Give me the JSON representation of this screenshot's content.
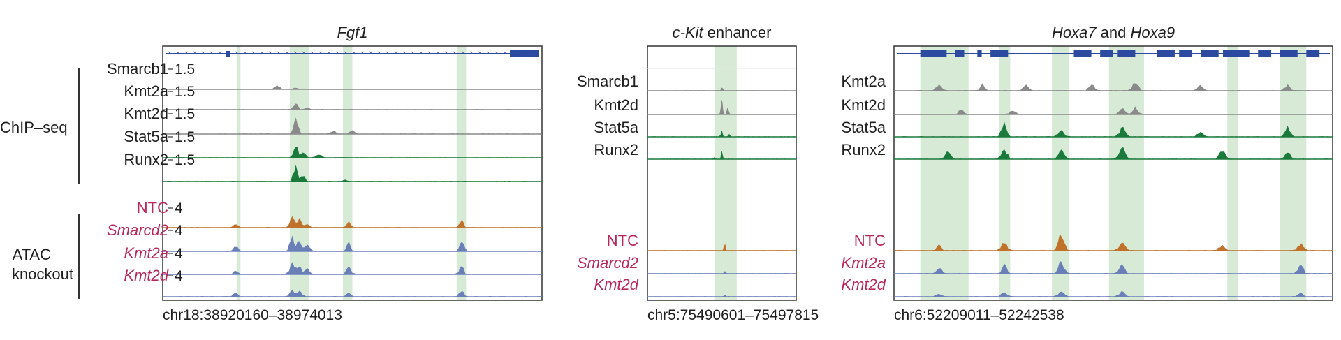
{
  "colors": {
    "gray": "#8a8a8a",
    "green": "#1a7a3c",
    "orange": "#c0712a",
    "blue": "#6a7fb8",
    "highlight": "#cfe6cf",
    "gene": "#2b4aa0",
    "label_red": "#b8275a",
    "frame": "#333333"
  },
  "groups": {
    "chipseq": "ChIP–seq",
    "atac_line1": "ATAC",
    "atac_line2": "knockout"
  },
  "panels": [
    {
      "id": "fgf1",
      "title_parts": [
        {
          "text": "Fgf1",
          "italic": true
        }
      ],
      "coord": "chr18:38920160–38974013",
      "chip_tracks": [
        {
          "label": "Smarcb1",
          "scale": "1.5",
          "color": "gray",
          "peaks": [
            [
              0.3,
              0.25
            ],
            [
              0.35,
              0.08
            ]
          ]
        },
        {
          "label": "Kmt2a",
          "scale": "1.5",
          "color": "gray",
          "peaks": [
            [
              0.35,
              0.35
            ],
            [
              0.38,
              0.1
            ]
          ]
        },
        {
          "label": "Kmt2d",
          "scale": "1.5",
          "color": "gray",
          "peaks": [
            [
              0.35,
              0.8
            ],
            [
              0.45,
              0.15
            ],
            [
              0.5,
              0.2
            ]
          ]
        },
        {
          "label": "Stat5a",
          "scale": "1.5",
          "color": "green",
          "peaks": [
            [
              0.35,
              0.7
            ],
            [
              0.37,
              0.3
            ],
            [
              0.41,
              0.2
            ]
          ]
        },
        {
          "label": "Runx2",
          "scale": "1.5",
          "color": "green",
          "peaks": [
            [
              0.35,
              0.9
            ],
            [
              0.37,
              0.3
            ],
            [
              0.48,
              0.1
            ]
          ]
        }
      ],
      "atac_tracks": [
        {
          "label": "NTC",
          "italic": false,
          "scale": "4",
          "color": "orange",
          "peaks": [
            [
              0.19,
              0.2
            ],
            [
              0.34,
              0.6
            ],
            [
              0.36,
              0.5
            ],
            [
              0.38,
              0.2
            ],
            [
              0.49,
              0.3
            ],
            [
              0.79,
              0.4
            ]
          ]
        },
        {
          "label": "Smarcd2",
          "italic": true,
          "scale": "4",
          "color": "blue",
          "peaks": [
            [
              0.19,
              0.3
            ],
            [
              0.34,
              0.8
            ],
            [
              0.36,
              0.6
            ],
            [
              0.38,
              0.4
            ],
            [
              0.49,
              0.5
            ],
            [
              0.79,
              0.6
            ]
          ]
        },
        {
          "label": "Kmt2a",
          "italic": true,
          "scale": "4",
          "color": "blue",
          "peaks": [
            [
              0.19,
              0.2
            ],
            [
              0.34,
              0.7
            ],
            [
              0.36,
              0.5
            ],
            [
              0.38,
              0.3
            ],
            [
              0.49,
              0.4
            ],
            [
              0.79,
              0.5
            ]
          ]
        },
        {
          "label": "Kmt2d",
          "italic": true,
          "scale": "4",
          "color": "blue",
          "peaks": [
            [
              0.19,
              0.2
            ],
            [
              0.34,
              0.4
            ],
            [
              0.36,
              0.3
            ],
            [
              0.49,
              0.2
            ],
            [
              0.79,
              0.3
            ]
          ]
        }
      ],
      "highlights": [
        [
          0.195,
          0.205
        ],
        [
          0.335,
          0.385
        ],
        [
          0.475,
          0.5
        ],
        [
          0.775,
          0.8
        ]
      ]
    },
    {
      "id": "ckit",
      "title_parts": [
        {
          "text": "c-Kit",
          "italic": true
        },
        {
          "text": " enhancer",
          "italic": false
        }
      ],
      "coord": "chr5:75490601–75497815",
      "chip_tracks": [
        {
          "label": "Smarcb1",
          "scale": "",
          "color": "gray",
          "peaks": [
            [
              0.5,
              0.2
            ]
          ]
        },
        {
          "label": "Kmt2d",
          "scale": "",
          "color": "gray",
          "peaks": [
            [
              0.5,
              0.85
            ],
            [
              0.54,
              0.4
            ]
          ]
        },
        {
          "label": "Stat5a",
          "scale": "",
          "color": "green",
          "peaks": [
            [
              0.5,
              0.35
            ],
            [
              0.55,
              0.15
            ]
          ]
        },
        {
          "label": "Runx2",
          "scale": "",
          "color": "green",
          "peaks": [
            [
              0.5,
              0.45
            ],
            [
              0.45,
              0.1
            ]
          ]
        }
      ],
      "atac_tracks": [
        {
          "label": "NTC",
          "italic": false,
          "scale": "",
          "color": "orange",
          "peaks": [
            [
              0.52,
              0.4
            ]
          ]
        },
        {
          "label": "Smarcd2",
          "italic": true,
          "scale": "",
          "color": "blue",
          "peaks": [
            [
              0.52,
              0.15
            ]
          ]
        },
        {
          "label": "Kmt2d",
          "italic": true,
          "scale": "",
          "color": "blue",
          "peaks": [
            [
              0.52,
              0.1
            ]
          ]
        }
      ],
      "highlights": [
        [
          0.45,
          0.6
        ]
      ]
    },
    {
      "id": "hoxa",
      "title_parts": [
        {
          "text": "Hoxa7",
          "italic": true
        },
        {
          "text": " and ",
          "italic": false
        },
        {
          "text": "Hoxa9",
          "italic": true
        }
      ],
      "coord": "chr6:52209011–52242538",
      "chip_tracks": [
        {
          "label": "Kmt2a",
          "scale": "",
          "color": "gray",
          "peaks": [
            [
              0.1,
              0.3
            ],
            [
              0.2,
              0.4
            ],
            [
              0.3,
              0.3
            ],
            [
              0.45,
              0.4
            ],
            [
              0.55,
              0.5
            ],
            [
              0.7,
              0.3
            ],
            [
              0.9,
              0.3
            ]
          ]
        },
        {
          "label": "Kmt2d",
          "scale": "",
          "color": "gray",
          "peaks": [
            [
              0.15,
              0.3
            ],
            [
              0.27,
              0.25
            ],
            [
              0.52,
              0.35
            ],
            [
              0.55,
              0.4
            ]
          ]
        },
        {
          "label": "Stat5a",
          "scale": "",
          "color": "green",
          "peaks": [
            [
              0.25,
              0.8
            ],
            [
              0.38,
              0.4
            ],
            [
              0.52,
              0.6
            ],
            [
              0.7,
              0.3
            ],
            [
              0.9,
              0.6
            ]
          ]
        },
        {
          "label": "Runx2",
          "scale": "",
          "color": "green",
          "peaks": [
            [
              0.12,
              0.4
            ],
            [
              0.25,
              0.6
            ],
            [
              0.38,
              0.5
            ],
            [
              0.52,
              0.7
            ],
            [
              0.75,
              0.5
            ],
            [
              0.9,
              0.4
            ]
          ]
        }
      ],
      "atac_tracks": [
        {
          "label": "NTC",
          "italic": false,
          "scale": "",
          "color": "orange",
          "peaks": [
            [
              0.1,
              0.3
            ],
            [
              0.25,
              0.5
            ],
            [
              0.38,
              1.0
            ],
            [
              0.52,
              0.5
            ],
            [
              0.75,
              0.3
            ],
            [
              0.93,
              0.4
            ]
          ]
        },
        {
          "label": "Kmt2a",
          "italic": true,
          "scale": "",
          "color": "blue",
          "peaks": [
            [
              0.1,
              0.3
            ],
            [
              0.25,
              0.5
            ],
            [
              0.38,
              0.8
            ],
            [
              0.52,
              0.5
            ],
            [
              0.93,
              0.5
            ]
          ]
        },
        {
          "label": "Kmt2d",
          "italic": true,
          "scale": "",
          "color": "blue",
          "peaks": [
            [
              0.1,
              0.2
            ],
            [
              0.25,
              0.3
            ],
            [
              0.38,
              0.3
            ],
            [
              0.52,
              0.3
            ],
            [
              0.93,
              0.2
            ]
          ]
        }
      ],
      "highlights": [
        [
          0.06,
          0.17
        ],
        [
          0.24,
          0.265
        ],
        [
          0.36,
          0.4
        ],
        [
          0.49,
          0.57
        ],
        [
          0.76,
          0.785
        ],
        [
          0.88,
          0.94
        ]
      ]
    }
  ]
}
